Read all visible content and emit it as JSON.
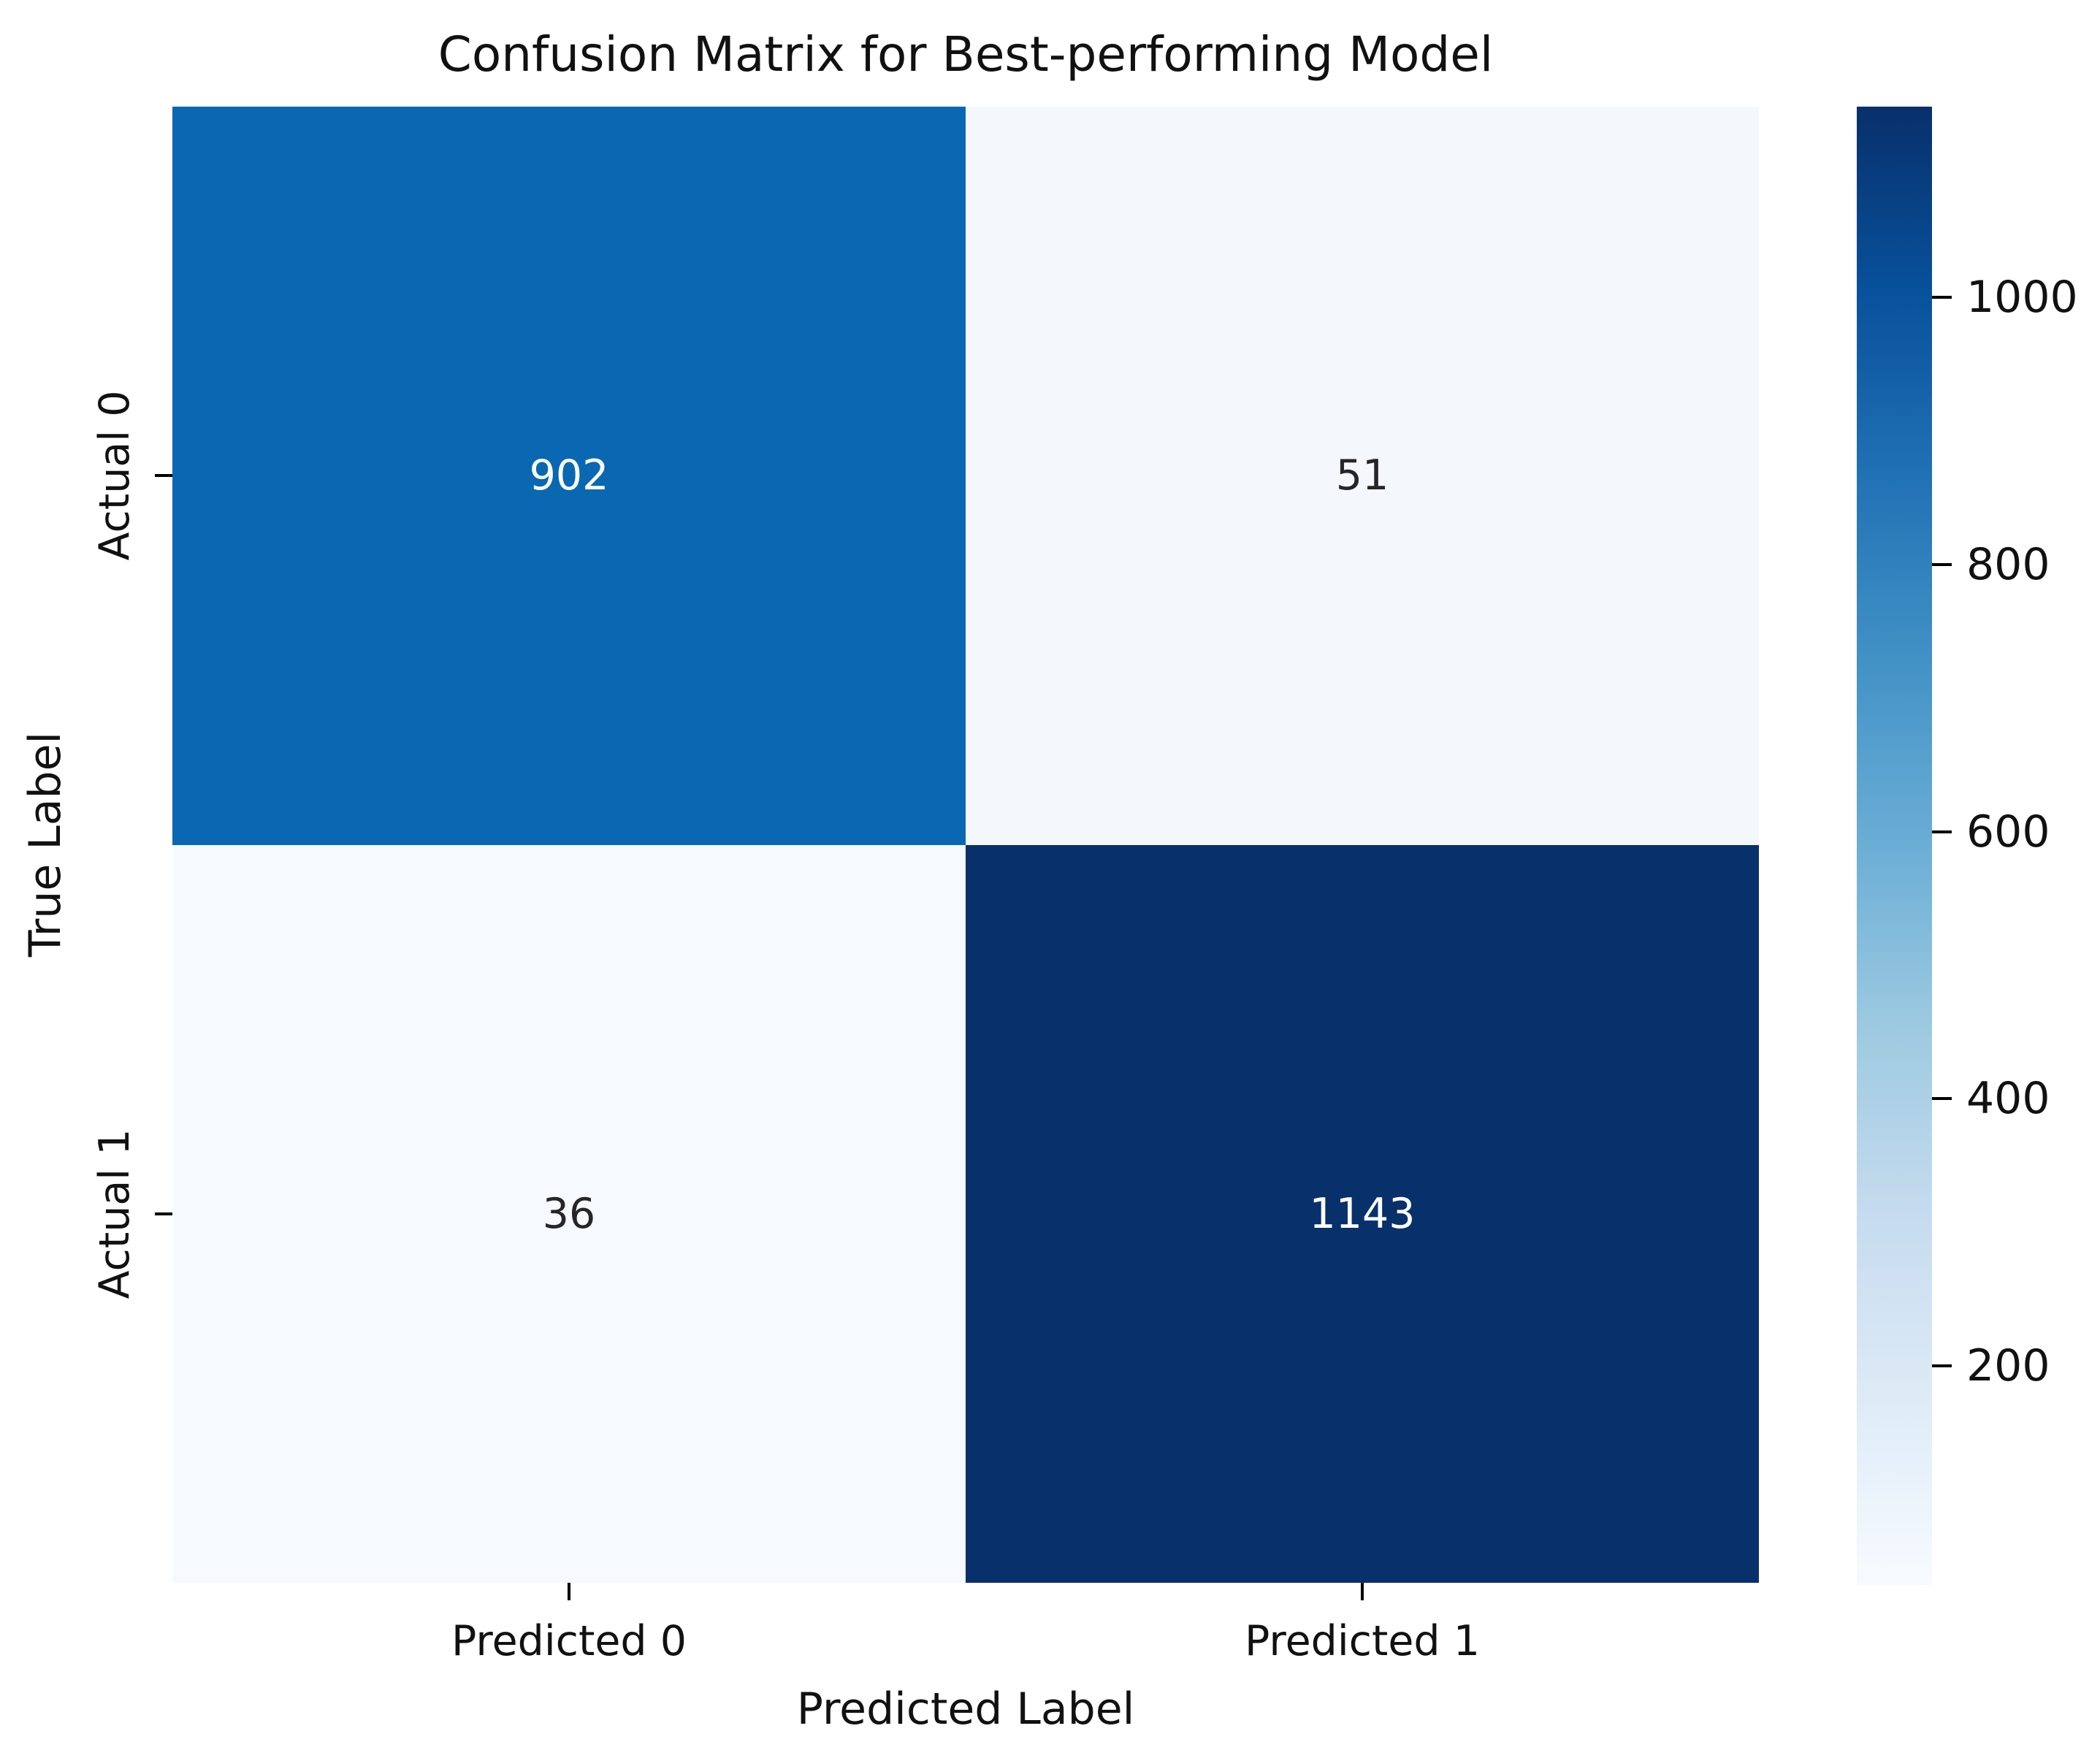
{
  "title": "Confusion Matrix for Best-performing Model",
  "chart_data": {
    "type": "heatmap",
    "title": "Confusion Matrix for Best-performing Model",
    "xlabel": "Predicted Label",
    "ylabel": "True Label",
    "x_ticklabels": [
      "Predicted 0",
      "Predicted 1"
    ],
    "y_ticklabels": [
      "Actual 0",
      "Actual 1"
    ],
    "matrix": [
      [
        902,
        51
      ],
      [
        36,
        1143
      ]
    ],
    "annotations": [
      [
        "902",
        "51"
      ],
      [
        "36",
        "1143"
      ]
    ],
    "vmin": 36,
    "vmax": 1143,
    "colormap": "Blues",
    "grid": false,
    "legend_position": "colorbar-right",
    "colorbar_ticks": [
      1000,
      800,
      600,
      400,
      200
    ],
    "cell_colors": [
      [
        "#0968b1",
        "#f4f8fc"
      ],
      [
        "#f6f9fd",
        "#08306b"
      ]
    ],
    "cell_text_colors": [
      [
        "#ffffff",
        "#262626"
      ],
      [
        "#262626",
        "#ffffff"
      ]
    ],
    "colormap_stops": [
      {
        "pos": 0.0,
        "color": "#f7fbff"
      },
      {
        "pos": 0.125,
        "color": "#deebf7"
      },
      {
        "pos": 0.25,
        "color": "#c6dbef"
      },
      {
        "pos": 0.375,
        "color": "#9ecae1"
      },
      {
        "pos": 0.5,
        "color": "#6baed6"
      },
      {
        "pos": 0.625,
        "color": "#4292c6"
      },
      {
        "pos": 0.75,
        "color": "#2171b5"
      },
      {
        "pos": 0.875,
        "color": "#08519c"
      },
      {
        "pos": 1.0,
        "color": "#08306b"
      }
    ]
  }
}
